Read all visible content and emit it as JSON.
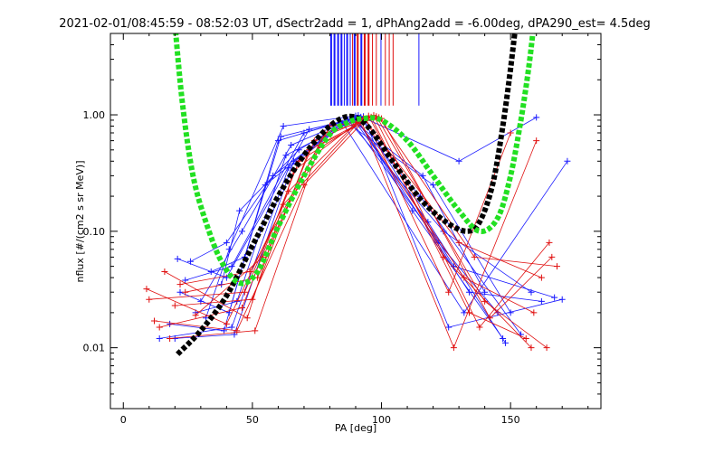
{
  "chart_data": {
    "type": "line",
    "title": "2021-02-01/08:45:59 - 08:52:03 UT, dSectr2add = 1, dPhAng2add = -6.00deg, dPA290_est=   4.5deg",
    "xlabel": "PA [deg]",
    "ylabel": "nflux [#/(cm2 s sr MeV)]",
    "xlim": [
      -5,
      185
    ],
    "ylim": [
      0.003,
      5
    ],
    "y_scale": "log",
    "grid": false,
    "xticks": [
      {
        "value": 0,
        "label": "0"
      },
      {
        "value": 50,
        "label": "50"
      },
      {
        "value": 100,
        "label": "100"
      },
      {
        "value": 150,
        "label": "150"
      }
    ],
    "yticks": [
      {
        "value": 0.01,
        "label": "0.01"
      },
      {
        "value": 0.1,
        "label": "0.10"
      },
      {
        "value": 1,
        "label": "1.00"
      }
    ],
    "colors": {
      "blue": "#1a1aff",
      "red": "#e01010",
      "black": "#000000",
      "green": "#22e022"
    },
    "series": [
      {
        "color": "blue",
        "style": "lines-plus",
        "profiles": [
          [
            [
              20,
              0.012
            ],
            [
              43,
              0.013
            ],
            [
              66,
              0.4
            ],
            [
              90,
              0.98
            ],
            [
              112,
              0.15
            ],
            [
              147,
              0.012
            ]
          ],
          [
            [
              14,
              0.012
            ],
            [
              42,
              0.015
            ],
            [
              64,
              0.35
            ],
            [
              89,
              0.95
            ],
            [
              115,
              0.2
            ],
            [
              154,
              0.013
            ]
          ],
          [
            [
              22,
              0.03
            ],
            [
              41,
              0.02
            ],
            [
              60,
              0.6
            ],
            [
              88,
              0.92
            ],
            [
              116,
              0.3
            ],
            [
              140,
              0.03
            ]
          ],
          [
            [
              26,
              0.055
            ],
            [
              40,
              0.08
            ],
            [
              58,
              0.3
            ],
            [
              86,
              0.88
            ],
            [
              120,
              0.25
            ],
            [
              150,
              0.02
            ]
          ],
          [
            [
              32,
              0.018
            ],
            [
              41,
              0.07
            ],
            [
              62,
              0.8
            ],
            [
              91,
              0.99
            ],
            [
              130,
              0.4
            ],
            [
              160,
              0.95
            ]
          ],
          [
            [
              38,
              0.035
            ],
            [
              45,
              0.15
            ],
            [
              68,
              0.5
            ],
            [
              87,
              0.9
            ],
            [
              124,
              0.1
            ],
            [
              158,
              0.03
            ]
          ],
          [
            [
              28,
              0.02
            ],
            [
              44,
              0.025
            ],
            [
              63,
              0.45
            ],
            [
              92,
              0.96
            ],
            [
              128,
              0.05
            ],
            [
              167,
              0.027
            ]
          ],
          [
            [
              18,
              0.016
            ],
            [
              39,
              0.014
            ],
            [
              55,
              0.25
            ],
            [
              85,
              0.85
            ],
            [
              132,
              0.02
            ],
            [
              172,
              0.4
            ]
          ],
          [
            [
              24,
              0.038
            ],
            [
              42,
              0.05
            ],
            [
              70,
              0.7
            ],
            [
              93,
              0.97
            ],
            [
              126,
              0.015
            ],
            [
              170,
              0.026
            ]
          ],
          [
            [
              30,
              0.025
            ],
            [
              46,
              0.1
            ],
            [
              65,
              0.55
            ],
            [
              89,
              0.93
            ],
            [
              118,
              0.12
            ],
            [
              148,
              0.011
            ]
          ],
          [
            [
              34,
              0.045
            ],
            [
              47,
              0.06
            ],
            [
              61,
              0.65
            ],
            [
              90,
              0.94
            ],
            [
              134,
              0.03
            ],
            [
              162,
              0.025
            ]
          ],
          [
            [
              21,
              0.058
            ],
            [
              40,
              0.04
            ],
            [
              72,
              0.75
            ],
            [
              88,
              0.91
            ],
            [
              122,
              0.08
            ],
            [
              145,
              0.02
            ]
          ]
        ]
      },
      {
        "color": "red",
        "style": "lines-plus",
        "profiles": [
          [
            [
              9,
              0.032
            ],
            [
              40,
              0.016
            ],
            [
              62,
              0.17
            ],
            [
              92,
              0.9
            ],
            [
              128,
              0.01
            ],
            [
              160,
              0.6
            ]
          ],
          [
            [
              12,
              0.017
            ],
            [
              44,
              0.014
            ],
            [
              70,
              0.25
            ],
            [
              95,
              0.98
            ],
            [
              124,
              0.06
            ],
            [
              158,
              0.01
            ]
          ],
          [
            [
              16,
              0.045
            ],
            [
              48,
              0.018
            ],
            [
              66,
              0.33
            ],
            [
              93,
              0.94
            ],
            [
              130,
              0.08
            ],
            [
              162,
              0.04
            ]
          ],
          [
            [
              20,
              0.023
            ],
            [
              50,
              0.026
            ],
            [
              72,
              0.5
            ],
            [
              96,
              0.96
            ],
            [
              134,
              0.02
            ],
            [
              156,
              0.012
            ]
          ],
          [
            [
              14,
              0.015
            ],
            [
              46,
              0.022
            ],
            [
              68,
              0.4
            ],
            [
              94,
              0.92
            ],
            [
              126,
              0.03
            ],
            [
              150,
              0.7
            ]
          ],
          [
            [
              24,
              0.03
            ],
            [
              52,
              0.04
            ],
            [
              74,
              0.6
            ],
            [
              97,
              0.99
            ],
            [
              138,
              0.015
            ],
            [
              165,
              0.08
            ]
          ],
          [
            [
              28,
              0.019
            ],
            [
              54,
              0.06
            ],
            [
              78,
              0.7
            ],
            [
              99,
              0.95
            ],
            [
              136,
              0.06
            ],
            [
              168,
              0.05
            ]
          ],
          [
            [
              10,
              0.026
            ],
            [
              47,
              0.03
            ],
            [
              64,
              0.22
            ],
            [
              91,
              0.88
            ],
            [
              132,
              0.04
            ],
            [
              159,
              0.02
            ]
          ],
          [
            [
              18,
              0.012
            ],
            [
              51,
              0.014
            ],
            [
              76,
              0.55
            ],
            [
              98,
              0.97
            ],
            [
              140,
              0.025
            ],
            [
              164,
              0.01
            ]
          ],
          [
            [
              22,
              0.035
            ],
            [
              49,
              0.045
            ],
            [
              80,
              0.8
            ],
            [
              100,
              0.93
            ],
            [
              142,
              0.018
            ],
            [
              166,
              0.06
            ]
          ]
        ]
      }
    ],
    "black_curve": {
      "color": "black",
      "style": "thick-dashed",
      "points": [
        [
          21,
          0.0088
        ],
        [
          30,
          0.014
        ],
        [
          40,
          0.028
        ],
        [
          50,
          0.075
        ],
        [
          60,
          0.2
        ],
        [
          70,
          0.45
        ],
        [
          80,
          0.8
        ],
        [
          88,
          0.97
        ],
        [
          95,
          0.78
        ],
        [
          105,
          0.38
        ],
        [
          115,
          0.19
        ],
        [
          125,
          0.12
        ],
        [
          133,
          0.1
        ],
        [
          138,
          0.12
        ],
        [
          143,
          0.25
        ],
        [
          147,
          0.8
        ],
        [
          150,
          2.5
        ],
        [
          152,
          6
        ]
      ]
    },
    "green_curve": {
      "color": "green",
      "style": "thick-dashed",
      "points": [
        [
          20,
          6
        ],
        [
          23,
          1.2
        ],
        [
          27,
          0.3
        ],
        [
          32,
          0.12
        ],
        [
          38,
          0.055
        ],
        [
          45,
          0.036
        ],
        [
          52,
          0.045
        ],
        [
          60,
          0.11
        ],
        [
          70,
          0.3
        ],
        [
          80,
          0.68
        ],
        [
          87,
          0.86
        ],
        [
          93,
          0.93
        ],
        [
          100,
          0.9
        ],
        [
          110,
          0.6
        ],
        [
          120,
          0.3
        ],
        [
          130,
          0.15
        ],
        [
          138,
          0.1
        ],
        [
          145,
          0.13
        ],
        [
          150,
          0.3
        ],
        [
          154,
          0.9
        ],
        [
          157,
          2.5
        ],
        [
          159,
          6
        ]
      ]
    },
    "sector_bars": {
      "y_top": 5,
      "y_bottom": 1.2,
      "bars": [
        {
          "x": 80.5,
          "color": "blue",
          "width": 2
        },
        {
          "x": 81.8,
          "color": "blue",
          "width": 2
        },
        {
          "x": 83.2,
          "color": "blue",
          "width": 2
        },
        {
          "x": 84.5,
          "color": "blue",
          "width": 2
        },
        {
          "x": 85.6,
          "color": "blue",
          "width": 1
        },
        {
          "x": 86.7,
          "color": "blue",
          "width": 2
        },
        {
          "x": 87.9,
          "color": "blue",
          "width": 1
        },
        {
          "x": 88.8,
          "color": "red",
          "width": 1
        },
        {
          "x": 89.6,
          "color": "blue",
          "width": 2
        },
        {
          "x": 90.8,
          "color": "red",
          "width": 2
        },
        {
          "x": 92.2,
          "color": "blue",
          "width": 2
        },
        {
          "x": 93.5,
          "color": "red",
          "width": 2
        },
        {
          "x": 95.0,
          "color": "red",
          "width": 2
        },
        {
          "x": 96.5,
          "color": "red",
          "width": 1
        },
        {
          "x": 98.0,
          "color": "red",
          "width": 1
        },
        {
          "x": 99.8,
          "color": "blue",
          "width": 1
        },
        {
          "x": 101.5,
          "color": "red",
          "width": 1
        },
        {
          "x": 103.0,
          "color": "red",
          "width": 1
        },
        {
          "x": 104.5,
          "color": "red",
          "width": 1
        },
        {
          "x": 114.5,
          "color": "blue",
          "width": 1
        }
      ]
    }
  }
}
